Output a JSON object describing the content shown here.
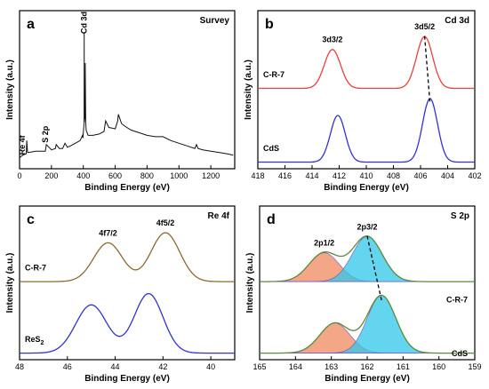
{
  "chart_data": [
    {
      "panel_label": "a",
      "type": "line",
      "title": "Survey",
      "xlabel": "Binding Energy (eV)",
      "ylabel": "Intensity (a.u.)",
      "xlim": [
        0,
        1350
      ],
      "x_ticks": [
        "0",
        "200",
        "400",
        "600",
        "800",
        "1000",
        "1200"
      ],
      "peak_labels": [
        "Re 4f",
        "S 2p",
        "Cd 3d"
      ],
      "series": [
        {
          "x": [
            0,
            20,
            42,
            45,
            50,
            60,
            100,
            150,
            162,
            168,
            200,
            225,
            230,
            250,
            270,
            285,
            300,
            320,
            350,
            380,
            395,
            398,
            405,
            405.5,
            406,
            411,
            412,
            415,
            418,
            430,
            460,
            500,
            530,
            540,
            560,
            600,
            616,
            620,
            640,
            660,
            700,
            750,
            800,
            850,
            900,
            950,
            1000,
            1050,
            1100,
            1110,
            1120,
            1150,
            1200,
            1250,
            1300,
            1340
          ],
          "y": [
            3,
            5,
            6,
            16,
            7,
            7,
            8,
            8,
            8,
            13,
            9,
            10,
            13,
            10,
            10,
            14,
            11,
            12,
            14,
            16,
            20,
            18,
            30,
            98,
            30,
            35,
            75,
            30,
            24,
            20,
            20,
            21,
            23,
            31,
            26,
            25,
            31,
            36,
            29,
            27,
            24,
            22,
            20,
            19,
            19,
            16,
            14,
            12,
            10,
            13,
            10,
            9,
            8,
            7,
            6,
            5
          ]
        }
      ]
    },
    {
      "panel_label": "b",
      "type": "line",
      "title": "Cd 3d",
      "xlabel": "Binding Energy (eV)",
      "ylabel": "Intensity (a.u.)",
      "xlim": [
        418,
        402
      ],
      "x_ticks": [
        "418",
        "416",
        "414",
        "412",
        "410",
        "408",
        "406",
        "404",
        "402"
      ],
      "peak_labels": [
        "3d3/2",
        "3d5/2"
      ],
      "series": [
        {
          "name": "C-R-7",
          "color": "#e8413b",
          "peaks": [
            {
              "center": 412.5,
              "height": 60,
              "width": 0.6
            },
            {
              "center": 405.7,
              "height": 80,
              "width": 0.6
            }
          ],
          "baseline": 2
        },
        {
          "name": "CdS",
          "color": "#3232d2",
          "peaks": [
            {
              "center": 412.1,
              "height": 72,
              "width": 0.55
            },
            {
              "center": 405.3,
              "height": 98,
              "width": 0.55
            }
          ],
          "baseline": 2
        }
      ]
    },
    {
      "panel_label": "c",
      "type": "line",
      "title": "Re 4f",
      "xlabel": "Binding Energy (eV)",
      "ylabel": "Intensity (a.u.)",
      "xlim": [
        48,
        39
      ],
      "x_ticks": [
        "48",
        "46",
        "44",
        "42",
        "40"
      ],
      "peak_labels": [
        "4f7/2",
        "4f5/2"
      ],
      "series": [
        {
          "name": "C-R-7",
          "color": "#8b6a2e",
          "peaks": [
            {
              "center": 44.3,
              "height": 62,
              "width": 0.6
            },
            {
              "center": 41.9,
              "height": 78,
              "width": 0.6
            }
          ],
          "baseline": 2
        },
        {
          "name": "ReS2",
          "color": "#3232d2",
          "peaks": [
            {
              "center": 45.0,
              "height": 77,
              "width": 0.65
            },
            {
              "center": 42.6,
              "height": 95,
              "width": 0.6
            }
          ],
          "baseline": 2
        }
      ]
    },
    {
      "panel_label": "d",
      "type": "line",
      "title": "S 2p",
      "xlabel": "Binding Energy (eV)",
      "ylabel": "Intensity (a.u.)",
      "xlim": [
        165,
        159
      ],
      "x_ticks": [
        "165",
        "164",
        "163",
        "162",
        "161",
        "160",
        "159"
      ],
      "peak_labels": [
        "2p1/2",
        "2p3/2"
      ],
      "series": [
        {
          "name": "C-R-7",
          "color": "#5a8a3a",
          "peaks": [
            {
              "center": 163.2,
              "height": 46,
              "width": 0.42
            },
            {
              "center": 162.0,
              "height": 72,
              "width": 0.42
            }
          ],
          "baseline": 2
        },
        {
          "name": "CdS",
          "color": "#5a8a3a",
          "peaks": [
            {
              "center": 162.9,
              "height": 48,
              "width": 0.42
            },
            {
              "center": 161.6,
              "height": 92,
              "width": 0.4
            }
          ],
          "baseline": 2
        }
      ]
    }
  ]
}
